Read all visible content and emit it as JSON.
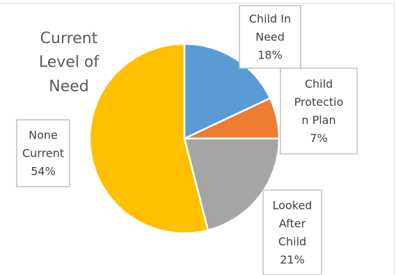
{
  "chart_data": {
    "type": "pie",
    "title_lines": [
      "Current",
      "Level of",
      "Need"
    ],
    "slices": [
      {
        "name": "Child In Need",
        "value": 18,
        "label_lines": [
          "Child In",
          "Need",
          "18%"
        ],
        "color": "#5b9bd5"
      },
      {
        "name": "Child Protection Plan",
        "value": 7,
        "label_lines": [
          "Child",
          "Protectio",
          "n Plan",
          "7%"
        ],
        "color": "#ed7d31"
      },
      {
        "name": "Looked After Child",
        "value": 21,
        "label_lines": [
          "Looked",
          "After",
          "Child",
          "21%"
        ],
        "color": "#a5a5a5"
      },
      {
        "name": "None Current",
        "value": 54,
        "label_lines": [
          "None",
          "Current",
          "54%"
        ],
        "color": "#ffc000"
      }
    ],
    "start_angle_deg": 0,
    "direction": "clockwise"
  }
}
